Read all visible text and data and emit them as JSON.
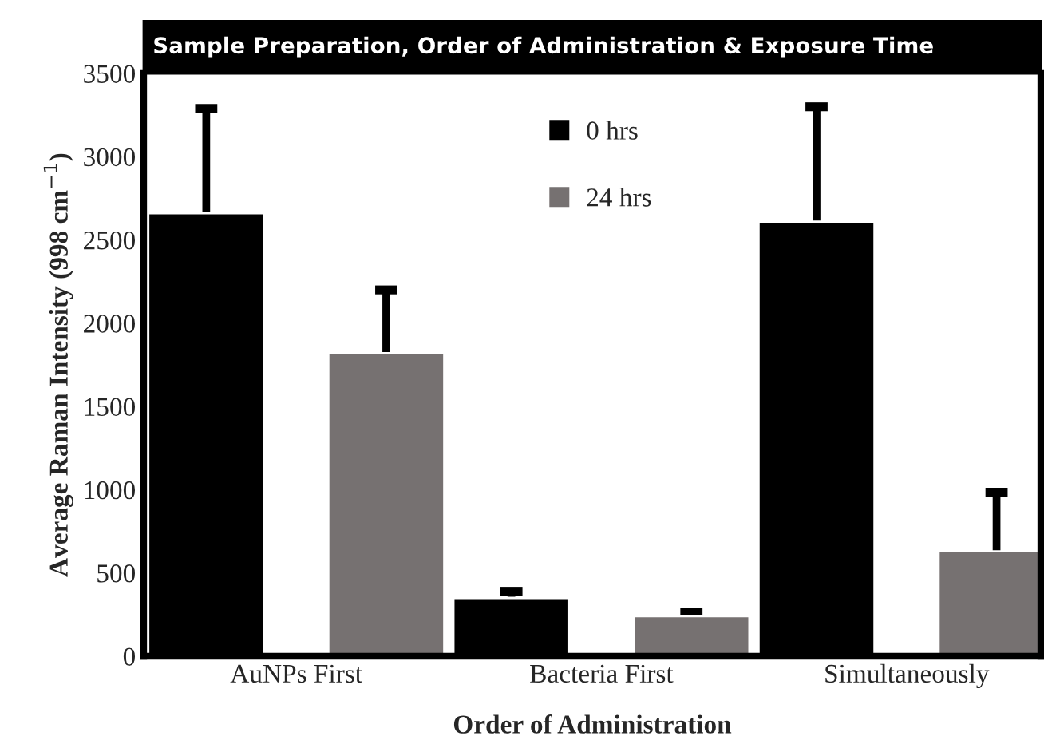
{
  "chart_data": {
    "type": "bar",
    "title": "Sample Preparation, Order of Administration & Exposure Time",
    "xlabel": "Order of Administration",
    "ylabel": "Average Raman Intensity (998 cm$^{−1}$)",
    "categories": [
      "AuNPs First",
      "Bacteria First",
      "Simultaneously"
    ],
    "series": [
      {
        "name": "0 hrs",
        "color": "#000000",
        "values": [
          2660,
          350,
          2610
        ],
        "errors": [
          630,
          40,
          690
        ]
      },
      {
        "name": "24 hrs",
        "color": "#767171",
        "values": [
          1820,
          240,
          630
        ],
        "errors": [
          380,
          25,
          355
        ]
      }
    ],
    "ylim": [
      0,
      3500
    ],
    "yticks": [
      0,
      500,
      1000,
      1500,
      2000,
      2500,
      3000,
      3500
    ],
    "grid": false,
    "legend": "top"
  }
}
